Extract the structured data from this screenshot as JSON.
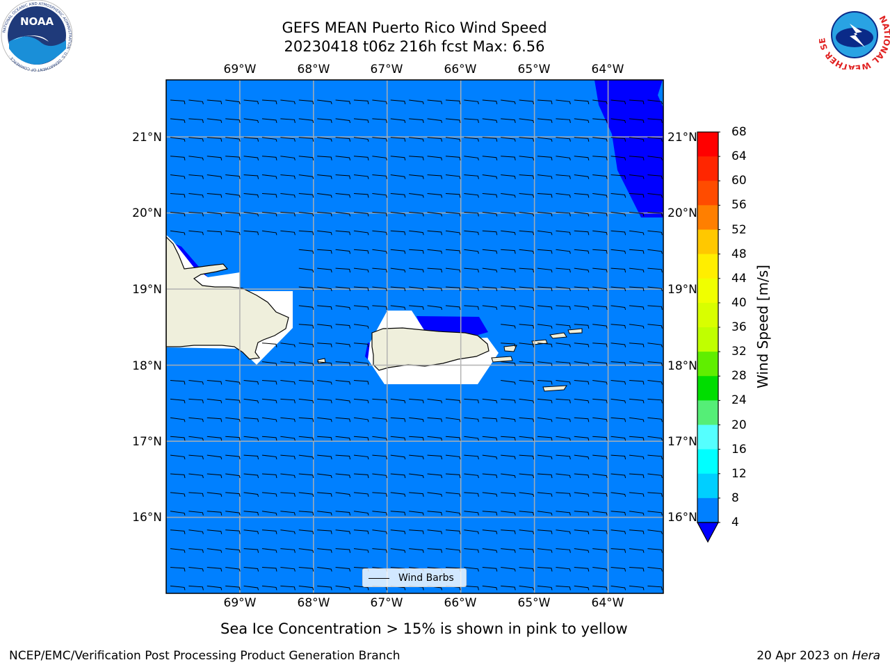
{
  "title_line1": "GEFS MEAN Puerto Rico Wind Speed",
  "title_line2": "20230418 t06z 216h fcst   Max: 6.56",
  "lon_labels": [
    "69°W",
    "68°W",
    "67°W",
    "66°W",
    "65°W",
    "64°W"
  ],
  "lat_labels": [
    "21°N",
    "20°N",
    "19°N",
    "18°N",
    "17°N",
    "16°N"
  ],
  "colorbar": {
    "label": "Wind Speed [m/s]",
    "ticks": [
      "68",
      "64",
      "60",
      "56",
      "52",
      "48",
      "44",
      "40",
      "36",
      "32",
      "28",
      "24",
      "20",
      "16",
      "12",
      "8",
      "4"
    ],
    "colors": [
      "#ff0000",
      "#ff2600",
      "#ff4c00",
      "#ff7f00",
      "#ffa500",
      "#ffc800",
      "#ffee00",
      "#f0ff00",
      "#d8ff00",
      "#c0ff00",
      "#60ee00",
      "#00dd00",
      "#55ee77",
      "#aaffff",
      "#55ffff",
      "#00ffff",
      "#00cfff",
      "#0080ff"
    ],
    "under_color": "#0000ff"
  },
  "legend_label": "Wind Barbs",
  "note": "Sea Ice Concentration > 15% is shown in pink to yellow",
  "footer_left": "NCEP/EMC/Verification Post Processing Product Generation Branch",
  "footer_right_date": "20 Apr 2023 on ",
  "footer_right_machine": "Hera",
  "logos": {
    "noaa_text": "NOAA",
    "noaa_ring": "NATIONAL OCEANIC AND ATMOSPHERIC ADMINISTRATION · U.S. DEPARTMENT OF COMMERCE ·",
    "nws_ring": "NATIONAL WEATHER SERVICE"
  },
  "chart_data": {
    "type": "heatmap",
    "projection": "PlateCarree",
    "lon_range": [
      -70.0,
      -63.25
    ],
    "lat_range": [
      15.0,
      21.75
    ],
    "gridlines": true,
    "field": "wind speed (m/s)",
    "max_value": 6.56,
    "dominant_level": "4-8 m/s",
    "below_4_regions": [
      "NE corner (north of 20N, east of 64.2W)",
      "coast north of Puerto Rico",
      "west coast of Puerto Rico",
      "NW Hispaniola coast"
    ],
    "contour_levels": [
      4,
      8,
      12,
      16,
      20,
      24,
      28,
      32,
      36,
      40,
      44,
      48,
      52,
      56,
      60,
      64,
      68
    ],
    "wind_barbs": "easterly ~5 m/s across domain",
    "legend_position": "lower center"
  }
}
